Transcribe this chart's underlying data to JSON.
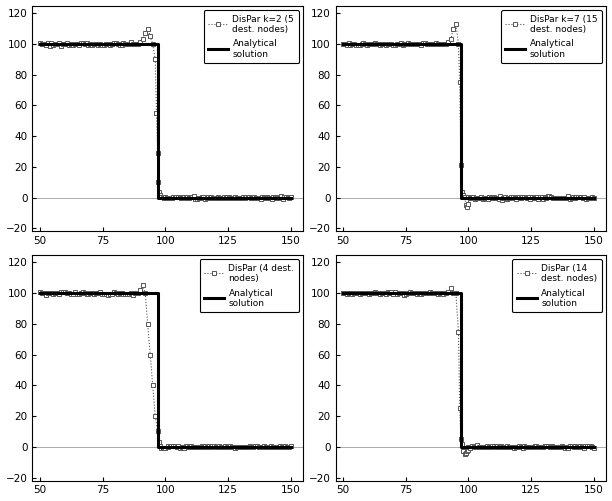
{
  "subplots": [
    {
      "label_dispar": "DisPar k=2 (5\ndest. nodes)",
      "label_analytical": "Analytical\nsolution"
    },
    {
      "label_dispar": "DisPar k=7 (15\ndest. nodes)",
      "label_analytical": "Analytical\nsolution"
    },
    {
      "label_dispar": "DisPar (4 dest.\nnodes)",
      "label_analytical": "Analytical\nsolution"
    },
    {
      "label_dispar": "DisPar (14\ndest. nodes)",
      "label_analytical": "Analytical\nsolution"
    }
  ],
  "xlim": [
    47,
    155
  ],
  "ylim": [
    -22,
    125
  ],
  "xticks": [
    50,
    75,
    100,
    125,
    150
  ],
  "yticks": [
    -20,
    0,
    20,
    40,
    60,
    80,
    100,
    120
  ],
  "figsize": [
    6.12,
    5.01
  ],
  "dpi": 100,
  "analytical_color": "#000000",
  "dispar_color": "#555555",
  "analytical_lw": 2.2,
  "dispar_lw": 0.8,
  "front_x": 97.0
}
